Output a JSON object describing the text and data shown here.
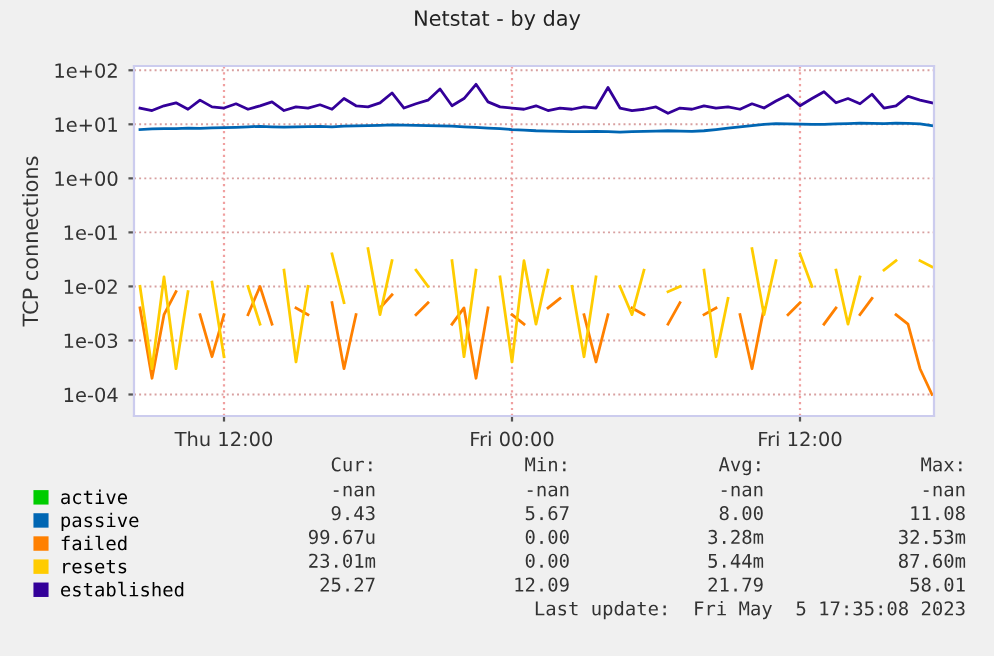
{
  "chart_data": {
    "type": "line",
    "title": "Netstat - by day",
    "ylabel": "TCP connections",
    "log": "y",
    "grid": true,
    "legend": "bottom",
    "marker": "none",
    "line_style": "solid",
    "xlim": [
      "2023-05-04T08:15",
      "2023-05-05T17:35"
    ],
    "xticks": [
      {
        "value": "2023-05-04T12:00",
        "label": "Thu 12:00"
      },
      {
        "value": "2023-05-05T00:00",
        "label": "Fri 00:00"
      },
      {
        "value": "2023-05-05T12:00",
        "label": "Fri 12:00"
      }
    ],
    "ylim": [
      4e-05,
      120
    ],
    "yticks": [
      {
        "value": 0.0001,
        "label": "1e-04"
      },
      {
        "value": 0.001,
        "label": "1e-03"
      },
      {
        "value": 0.01,
        "label": "1e-02"
      },
      {
        "value": 0.1,
        "label": "1e-01"
      },
      {
        "value": 1,
        "label": "1e+00"
      },
      {
        "value": 10,
        "label": "1e+01"
      },
      {
        "value": 100,
        "label": "1e+02"
      }
    ],
    "x": [
      "2023-05-04T08:30",
      "2023-05-04T09:00",
      "2023-05-04T09:30",
      "2023-05-04T10:00",
      "2023-05-04T10:30",
      "2023-05-04T11:00",
      "2023-05-04T11:30",
      "2023-05-04T12:00",
      "2023-05-04T12:30",
      "2023-05-04T13:00",
      "2023-05-04T13:30",
      "2023-05-04T14:00",
      "2023-05-04T14:30",
      "2023-05-04T15:00",
      "2023-05-04T15:30",
      "2023-05-04T16:00",
      "2023-05-04T16:30",
      "2023-05-04T17:00",
      "2023-05-04T17:30",
      "2023-05-04T18:00",
      "2023-05-04T18:30",
      "2023-05-04T19:00",
      "2023-05-04T19:30",
      "2023-05-04T20:00",
      "2023-05-04T20:30",
      "2023-05-04T21:00",
      "2023-05-04T21:30",
      "2023-05-04T22:00",
      "2023-05-04T22:30",
      "2023-05-04T23:00",
      "2023-05-04T23:30",
      "2023-05-05T00:00",
      "2023-05-05T00:30",
      "2023-05-05T01:00",
      "2023-05-05T01:30",
      "2023-05-05T02:00",
      "2023-05-05T02:30",
      "2023-05-05T03:00",
      "2023-05-05T03:30",
      "2023-05-05T04:00",
      "2023-05-05T04:30",
      "2023-05-05T05:00",
      "2023-05-05T05:30",
      "2023-05-05T06:00",
      "2023-05-05T06:30",
      "2023-05-05T07:00",
      "2023-05-05T07:30",
      "2023-05-05T08:00",
      "2023-05-05T08:30",
      "2023-05-05T09:00",
      "2023-05-05T09:30",
      "2023-05-05T10:00",
      "2023-05-05T10:30",
      "2023-05-05T11:00",
      "2023-05-05T11:30",
      "2023-05-05T12:00",
      "2023-05-05T12:30",
      "2023-05-05T13:00",
      "2023-05-05T13:30",
      "2023-05-05T14:00",
      "2023-05-05T14:30",
      "2023-05-05T15:00",
      "2023-05-05T15:30",
      "2023-05-05T16:00",
      "2023-05-05T16:30",
      "2023-05-05T17:00",
      "2023-05-05T17:30"
    ],
    "series": [
      {
        "name": "active",
        "color": "#00cc00",
        "values": [
          null,
          null,
          null,
          null,
          null,
          null,
          null,
          null,
          null,
          null,
          null,
          null,
          null,
          null,
          null,
          null,
          null,
          null,
          null,
          null,
          null,
          null,
          null,
          null,
          null,
          null,
          null,
          null,
          null,
          null,
          null,
          null,
          null,
          null,
          null,
          null,
          null,
          null,
          null,
          null,
          null,
          null,
          null,
          null,
          null,
          null,
          null,
          null,
          null,
          null,
          null,
          null,
          null,
          null,
          null,
          null,
          null,
          null,
          null,
          null,
          null,
          null,
          null,
          null,
          null,
          null,
          null
        ]
      },
      {
        "name": "passive",
        "color": "#0066b3",
        "values": [
          8.0,
          8.2,
          8.3,
          8.3,
          8.5,
          8.4,
          8.6,
          8.7,
          8.8,
          9.0,
          9.2,
          9.0,
          8.9,
          9.0,
          9.1,
          9.2,
          9.0,
          9.3,
          9.4,
          9.5,
          9.6,
          9.8,
          9.7,
          9.6,
          9.5,
          9.4,
          9.3,
          9.0,
          8.8,
          8.5,
          8.3,
          8.0,
          7.8,
          7.6,
          7.5,
          7.4,
          7.3,
          7.3,
          7.4,
          7.3,
          7.2,
          7.3,
          7.4,
          7.5,
          7.6,
          7.5,
          7.4,
          7.6,
          8.0,
          8.5,
          9.0,
          9.5,
          10.0,
          10.3,
          10.2,
          10.1,
          10.0,
          10.0,
          10.2,
          10.3,
          10.5,
          10.4,
          10.3,
          10.5,
          10.4,
          10.2,
          9.43
        ]
      },
      {
        "name": "failed",
        "color": "#ff8000",
        "values": [
          0.004,
          0.0002,
          0.003,
          0.008,
          null,
          0.003,
          0.0005,
          0.003,
          null,
          0.003,
          0.01,
          0.002,
          null,
          0.004,
          0.003,
          null,
          0.005,
          0.0003,
          0.003,
          null,
          0.004,
          0.007,
          null,
          0.003,
          0.005,
          null,
          0.002,
          0.004,
          0.0002,
          0.004,
          null,
          0.003,
          0.002,
          null,
          0.004,
          0.006,
          null,
          0.003,
          0.0004,
          0.003,
          null,
          0.004,
          0.003,
          null,
          0.002,
          0.005,
          null,
          0.003,
          0.004,
          null,
          0.003,
          0.0003,
          0.004,
          null,
          0.003,
          0.005,
          null,
          0.002,
          0.004,
          null,
          0.003,
          0.006,
          null,
          0.003,
          0.002,
          0.0003,
          0.0001
        ]
      },
      {
        "name": "resets",
        "color": "#ffcc00",
        "values": [
          0.01,
          0.0003,
          0.015,
          0.0003,
          0.008,
          null,
          0.012,
          0.0005,
          null,
          0.01,
          0.002,
          null,
          0.02,
          0.0004,
          0.01,
          null,
          0.04,
          0.005,
          null,
          0.05,
          0.003,
          0.03,
          null,
          0.02,
          0.01,
          null,
          0.03,
          0.0005,
          0.02,
          null,
          0.015,
          0.0004,
          0.03,
          0.002,
          0.02,
          null,
          0.01,
          0.0005,
          0.015,
          null,
          0.01,
          0.003,
          0.02,
          null,
          0.008,
          0.01,
          null,
          0.02,
          0.0005,
          0.006,
          null,
          0.05,
          0.003,
          0.03,
          null,
          0.04,
          0.01,
          null,
          0.02,
          0.002,
          0.015,
          null,
          0.02,
          0.03,
          null,
          0.03,
          0.023
        ]
      },
      {
        "name": "established",
        "color": "#330099",
        "values": [
          20,
          18,
          22,
          25,
          19,
          28,
          21,
          20,
          24,
          19,
          22,
          26,
          18,
          21,
          20,
          23,
          19,
          30,
          22,
          21,
          25,
          38,
          20,
          24,
          28,
          45,
          22,
          30,
          55,
          26,
          21,
          20,
          19,
          22,
          18,
          20,
          19,
          21,
          20,
          48,
          20,
          18,
          19,
          21,
          16,
          20,
          19,
          22,
          20,
          21,
          19,
          24,
          20,
          27,
          35,
          22,
          30,
          40,
          25,
          30,
          24,
          36,
          20,
          22,
          33,
          28,
          25
        ]
      }
    ],
    "annotations": [
      "Cur:",
      "Min:",
      "Avg:",
      "Max:",
      "-nan",
      "-nan",
      "-nan",
      "-nan",
      "9.43",
      "5.67",
      "8.00",
      "11.08",
      "99.67u",
      "0.00",
      "3.28m",
      "32.53m",
      "23.01m",
      "0.00",
      "5.44m",
      "87.60m",
      "25.27",
      "12.09",
      "21.79",
      "58.01",
      "Last update:  Fri May  5 17:35:08 2023"
    ]
  }
}
